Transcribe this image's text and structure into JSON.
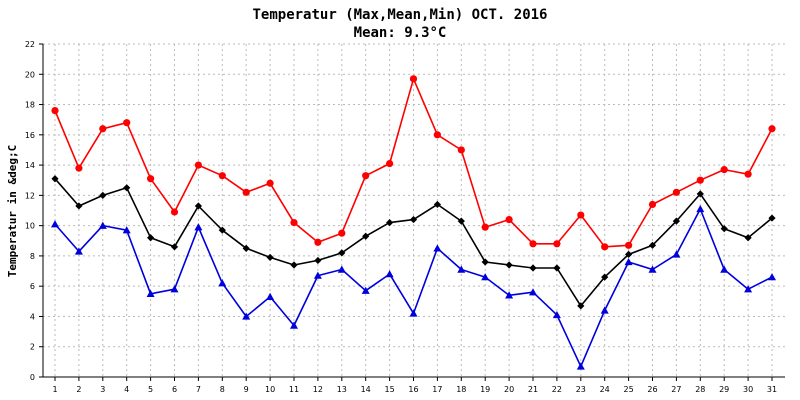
{
  "chart_data": {
    "type": "line",
    "title": "Temperatur (Max,Mean,Min) OCT. 2016",
    "subtitle": "Mean: 9.3°C",
    "ylabel": "Temperatur in &deg;C",
    "xlabel": "",
    "ylim": [
      0,
      22
    ],
    "ytick_step": 2,
    "grid": true,
    "categories": [
      "1",
      "2",
      "3",
      "4",
      "5",
      "6",
      "7",
      "8",
      "9",
      "10",
      "11",
      "12",
      "13",
      "14",
      "15",
      "16",
      "17",
      "18",
      "19",
      "20",
      "21",
      "22",
      "23",
      "24",
      "25",
      "26",
      "27",
      "28",
      "29",
      "30",
      "31"
    ],
    "series": [
      {
        "name": "Max",
        "color": "#ff0000",
        "marker": "circle",
        "values": [
          17.6,
          13.8,
          16.4,
          16.8,
          13.1,
          10.9,
          14.0,
          13.3,
          12.2,
          12.8,
          10.2,
          8.9,
          9.5,
          13.3,
          14.1,
          19.7,
          16.0,
          15.0,
          9.9,
          10.4,
          8.8,
          8.8,
          10.7,
          8.6,
          8.7,
          11.4,
          12.2,
          13.0,
          13.7,
          13.4,
          16.4
        ]
      },
      {
        "name": "Mean",
        "color": "#000000",
        "marker": "diamond",
        "values": [
          13.1,
          11.3,
          12.0,
          12.5,
          9.2,
          8.6,
          11.3,
          9.7,
          8.5,
          7.9,
          7.4,
          7.7,
          8.2,
          9.3,
          10.2,
          10.4,
          11.4,
          10.3,
          7.6,
          7.4,
          7.2,
          7.2,
          4.7,
          6.6,
          8.1,
          8.7,
          10.3,
          12.1,
          9.8,
          9.2,
          10.5
        ]
      },
      {
        "name": "Min",
        "color": "#0000dd",
        "marker": "triangle",
        "values": [
          10.1,
          8.3,
          10.0,
          9.7,
          5.5,
          5.8,
          9.9,
          6.2,
          4.0,
          5.3,
          3.4,
          6.7,
          7.1,
          5.7,
          6.8,
          4.2,
          8.5,
          7.1,
          6.6,
          5.4,
          5.6,
          4.1,
          0.7,
          4.4,
          7.6,
          7.1,
          8.1,
          11.1,
          7.1,
          5.8,
          6.6
        ]
      }
    ]
  }
}
